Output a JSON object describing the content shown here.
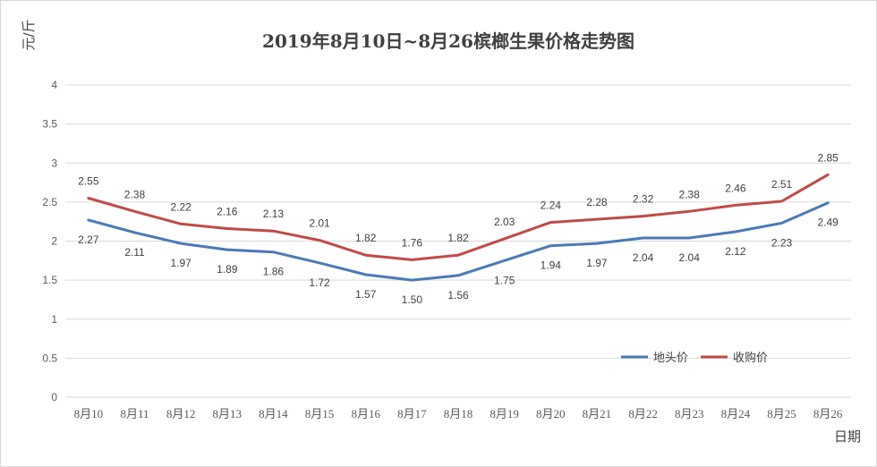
{
  "chart_data": {
    "type": "line",
    "title": "2019年8月10日~8月26槟榔生果价格走势图",
    "ylabel": "元/斤",
    "xlabel": "日期",
    "ylim": [
      0,
      4
    ],
    "yticks": [
      "0",
      "0.5",
      "1",
      "1.5",
      "2",
      "2.5",
      "3",
      "3.5",
      "4"
    ],
    "grid": true,
    "legend_position": "bottom-right",
    "categories": [
      "8月10",
      "8月11",
      "8月12",
      "8月13",
      "8月14",
      "8月15",
      "8月16",
      "8月17",
      "8月18",
      "8月19",
      "8月20",
      "8月21",
      "8月22",
      "8月23",
      "8月24",
      "8月25",
      "8月26"
    ],
    "series": [
      {
        "name": "地头价",
        "color": "#4a7ab5",
        "label_position": "below",
        "values": [
          2.27,
          2.11,
          1.97,
          1.89,
          1.86,
          1.72,
          1.57,
          1.5,
          1.56,
          1.75,
          1.94,
          1.97,
          2.04,
          2.04,
          2.12,
          2.23,
          2.49
        ],
        "labels": [
          "2.27",
          "2.11",
          "1.97",
          "1.89",
          "1.86",
          "1.72",
          "1.57",
          "1.50",
          "1.56",
          "1.75",
          "1.94",
          "1.97",
          "2.04",
          "2.04",
          "2.12",
          "2.23",
          "2.49"
        ]
      },
      {
        "name": "收购价",
        "color": "#be4b48",
        "label_position": "above",
        "values": [
          2.55,
          2.38,
          2.22,
          2.16,
          2.13,
          2.01,
          1.82,
          1.76,
          1.82,
          2.03,
          2.24,
          2.28,
          2.32,
          2.38,
          2.46,
          2.51,
          2.85
        ],
        "labels": [
          "2.55",
          "2.38",
          "2.22",
          "2.16",
          "2.13",
          "2.01",
          "1.82",
          "1.76",
          "1.82",
          "2.03",
          "2.24",
          "2.28",
          "2.32",
          "2.38",
          "2.46",
          "2.51",
          "2.85"
        ]
      }
    ]
  }
}
